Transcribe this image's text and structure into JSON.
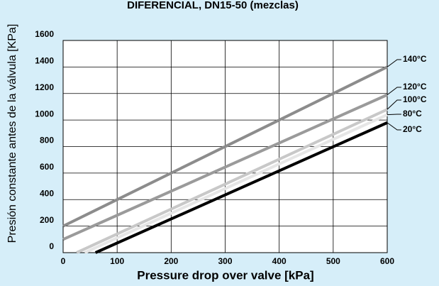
{
  "chart_data": {
    "type": "line",
    "title": "DIFERENCIAL, DN15-50 (mezclas)",
    "x_label": "Pressure drop over valve [kPa]",
    "y_label": "Presión constante antes de la válvula [KPa]",
    "series": [
      {
        "name": "140°C",
        "color": "#8c8c8c",
        "x": [
          0,
          600
        ],
        "values": [
          200,
          1400
        ]
      },
      {
        "name": "120°C",
        "color": "#9a9a9a",
        "x": [
          0,
          600
        ],
        "values": [
          100,
          1190
        ]
      },
      {
        "name": "100°C",
        "color": "#c8c8c8",
        "x": [
          25,
          600
        ],
        "values": [
          0,
          1080
        ]
      },
      {
        "name": "80°C",
        "color": "#e6e6e6",
        "x": [
          40,
          600
        ],
        "values": [
          0,
          1040
        ]
      },
      {
        "name": "20°C",
        "color": "#000000",
        "x": [
          60,
          600
        ],
        "values": [
          0,
          980
        ]
      }
    ],
    "xlim": [
      0,
      600
    ],
    "xticks": [
      0,
      100,
      200,
      300,
      400,
      500,
      600
    ],
    "ylim": [
      0,
      1600
    ],
    "yticks": [
      0,
      200,
      400,
      600,
      800,
      1000,
      1200,
      1400,
      1600
    ],
    "grid": true
  }
}
